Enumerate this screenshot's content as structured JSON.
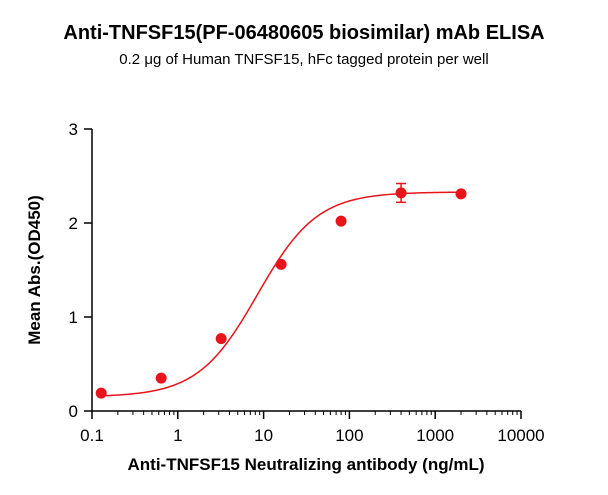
{
  "chart_data": {
    "type": "scatter",
    "title": "Anti-TNFSF15(PF-06480605 biosimilar) mAb ELISA",
    "subtitle": "0.2 μg of Human TNFSF15, hFc tagged protein per well",
    "xlabel": "Anti-TNFSF15 Neutralizing antibody (ng/mL)",
    "ylabel": "Mean Abs.(OD450)",
    "x_scale": "log",
    "xlim": [
      0.1,
      10000
    ],
    "ylim": [
      0,
      3
    ],
    "x_ticks": [
      0.1,
      1,
      10,
      100,
      1000,
      10000
    ],
    "x_tick_labels": [
      "0.1",
      "1",
      "10",
      "100",
      "1000",
      "10000"
    ],
    "y_ticks": [
      0,
      1,
      2,
      3
    ],
    "y_tick_labels": [
      "0",
      "1",
      "2",
      "3"
    ],
    "grid": false,
    "color": "#e8141c",
    "series": [
      {
        "x": [
          0.128,
          0.64,
          3.2,
          16,
          80,
          400,
          2000
        ],
        "y": [
          0.19,
          0.35,
          0.77,
          1.56,
          2.02,
          2.32,
          2.31
        ],
        "error": [
          0.0,
          0.0,
          0.0,
          0.0,
          0.0,
          0.1,
          0.0
        ]
      }
    ],
    "fit": {
      "type": "4PL",
      "bottom": 0.15,
      "top": 2.33,
      "ec50": 8.5,
      "hill": 1.25
    }
  }
}
